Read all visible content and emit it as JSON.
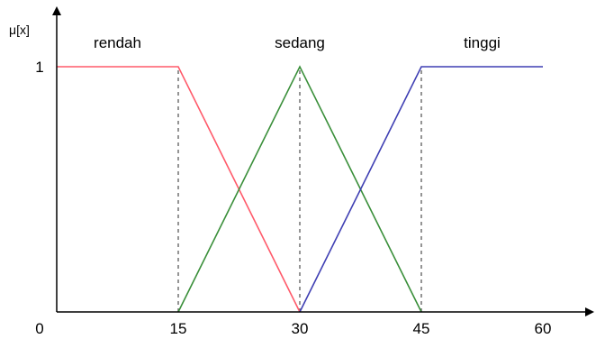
{
  "chart_data": {
    "type": "line",
    "title": "",
    "xlabel": "",
    "ylabel": "μ[x]",
    "xlim": [
      0,
      60
    ],
    "ylim": [
      0,
      1
    ],
    "x_ticks": [
      "0",
      "15",
      "30",
      "45",
      "60"
    ],
    "y_ticks": [
      "0",
      "1"
    ],
    "grid": false,
    "legend": "none",
    "series": [
      {
        "name": "rendah",
        "color": "#ff5a6a",
        "points": [
          [
            0,
            1
          ],
          [
            15,
            1
          ],
          [
            30,
            0
          ]
        ]
      },
      {
        "name": "sedang",
        "color": "#3a8f3a",
        "points": [
          [
            15,
            0
          ],
          [
            30,
            1
          ],
          [
            45,
            0
          ]
        ]
      },
      {
        "name": "tinggi",
        "color": "#3f3fb3",
        "points": [
          [
            30,
            0
          ],
          [
            45,
            1
          ],
          [
            60,
            1
          ]
        ]
      }
    ],
    "reference_lines": [
      {
        "x": 15,
        "from": 0,
        "to": 1,
        "style": "dashed",
        "color": "#666666"
      },
      {
        "x": 30,
        "from": 0,
        "to": 1,
        "style": "dashed",
        "color": "#666666"
      },
      {
        "x": 45,
        "from": 0,
        "to": 1,
        "style": "dashed",
        "color": "#666666"
      }
    ],
    "axis_color": "#000000"
  }
}
